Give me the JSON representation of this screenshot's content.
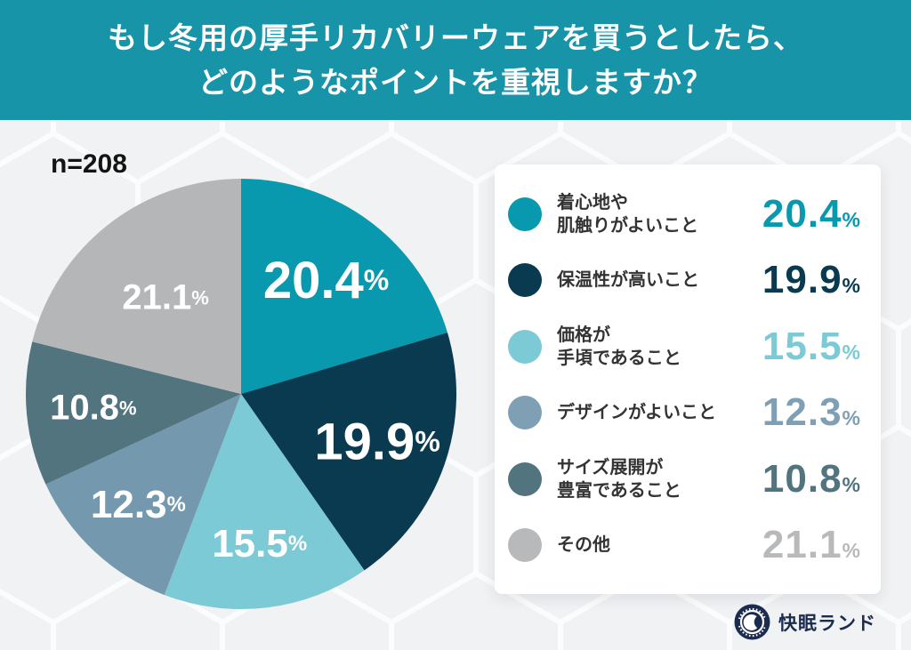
{
  "header": {
    "title_line1": "もし冬用の厚手リカバリーウェアを買うとしたら、",
    "title_line2": "どのようなポイントを重視しますか？",
    "bg_color": "#1794a8"
  },
  "sample_size": "n=208",
  "chart_data": {
    "type": "pie",
    "title": "もし冬用の厚手リカバリーウェアを買うとしたら、どのようなポイントを重視しますか？",
    "sample_size": "n=208",
    "start_angle_deg": 0,
    "direction": "clockwise",
    "unit": "%",
    "slices": [
      {
        "label": "着心地や肌触りがよいこと",
        "value": 20.4,
        "display": "20.4",
        "color": "#0999ae"
      },
      {
        "label": "保温性が高いこと",
        "value": 19.9,
        "display": "19.9",
        "color": "#0a3a50"
      },
      {
        "label": "価格が手頃であること",
        "value": 15.5,
        "display": "15.5",
        "color": "#7bcad5"
      },
      {
        "label": "デザインがよいこと",
        "value": 12.3,
        "display": "12.3",
        "color": "#7498ad"
      },
      {
        "label": "サイズ展開が豊富であること",
        "value": 10.8,
        "display": "10.8",
        "color": "#51747f"
      },
      {
        "label": "その他",
        "value": 21.1,
        "display": "21.1",
        "color": "#b4b6b8"
      }
    ]
  },
  "legend": {
    "items": [
      {
        "line1": "着心地や",
        "line2": "肌触りがよいこと",
        "value": "20.4",
        "unit": "%",
        "color": "#0999ae"
      },
      {
        "line1": "保温性が高いこと",
        "line2": "",
        "value": "19.9",
        "unit": "%",
        "color": "#0a3a50"
      },
      {
        "line1": "価格が",
        "line2": "手頃であること",
        "value": "15.5",
        "unit": "%",
        "color": "#7bcad5"
      },
      {
        "line1": "デザインがよいこと",
        "line2": "",
        "value": "12.3",
        "unit": "%",
        "color": "#7e9fb4"
      },
      {
        "line1": "サイズ展開が",
        "line2": "豊富であること",
        "value": "10.8",
        "unit": "%",
        "color": "#51747f"
      },
      {
        "line1": "その他",
        "line2": "",
        "value": "21.1",
        "unit": "%",
        "color": "#b7b9bb"
      }
    ]
  },
  "footer": {
    "brand": "快眠ランド",
    "badge_color": "#1c2c50"
  }
}
